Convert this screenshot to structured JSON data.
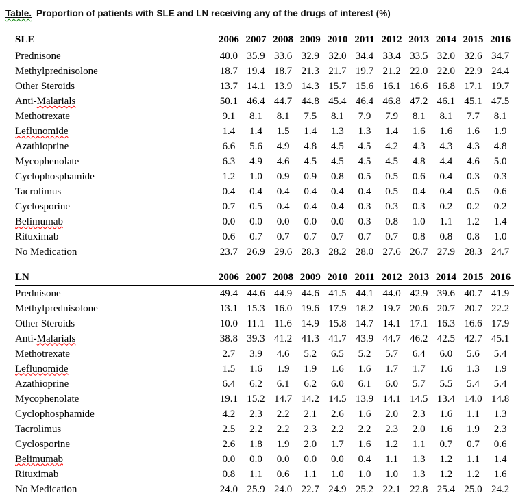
{
  "title": {
    "label": "Table.",
    "text": "Proportion of patients with SLE and LN receiving any of the drugs of interest (%)"
  },
  "colors": {
    "text": "#000000",
    "spellcheck_red": "#ff0000",
    "grammar_green": "#008000",
    "header_rule": "#000000"
  },
  "sections": [
    {
      "header": "SLE",
      "years": [
        "2006",
        "2007",
        "2008",
        "2009",
        "2010",
        "2011",
        "2012",
        "2013",
        "2014",
        "2015",
        "2016"
      ],
      "rows": [
        {
          "label": "Prednisone",
          "values": [
            "40.0",
            "35.9",
            "33.6",
            "32.9",
            "32.0",
            "34.4",
            "33.4",
            "33.5",
            "32.0",
            "32.6",
            "34.7"
          ]
        },
        {
          "label": "Methylprednisolone",
          "values": [
            "18.7",
            "19.4",
            "18.7",
            "21.3",
            "21.7",
            "19.7",
            "21.2",
            "22.0",
            "22.0",
            "22.9",
            "24.4"
          ]
        },
        {
          "label": "Other Steroids",
          "values": [
            "13.7",
            "14.1",
            "13.9",
            "14.3",
            "15.7",
            "15.6",
            "16.1",
            "16.6",
            "16.8",
            "17.1",
            "19.7"
          ]
        },
        {
          "prefix": "Anti-",
          "label": "Malarials",
          "misspelled": true,
          "values": [
            "50.1",
            "46.4",
            "44.7",
            "44.8",
            "45.4",
            "46.4",
            "46.8",
            "47.2",
            "46.1",
            "45.1",
            "47.5"
          ]
        },
        {
          "label": "Methotrexate",
          "values": [
            "9.1",
            "8.1",
            "8.1",
            "7.5",
            "8.1",
            "7.9",
            "7.9",
            "8.1",
            "8.1",
            "7.7",
            "8.1"
          ]
        },
        {
          "label": "Leflunomide",
          "misspelled": true,
          "values": [
            "1.4",
            "1.4",
            "1.5",
            "1.4",
            "1.3",
            "1.3",
            "1.4",
            "1.6",
            "1.6",
            "1.6",
            "1.9"
          ]
        },
        {
          "label": "Azathioprine",
          "values": [
            "6.6",
            "5.6",
            "4.9",
            "4.8",
            "4.5",
            "4.5",
            "4.2",
            "4.3",
            "4.3",
            "4.3",
            "4.8"
          ]
        },
        {
          "label": "Mycophenolate",
          "values": [
            "6.3",
            "4.9",
            "4.6",
            "4.5",
            "4.5",
            "4.5",
            "4.5",
            "4.8",
            "4.4",
            "4.6",
            "5.0"
          ]
        },
        {
          "label": "Cyclophosphamide",
          "values": [
            "1.2",
            "1.0",
            "0.9",
            "0.9",
            "0.8",
            "0.5",
            "0.5",
            "0.6",
            "0.4",
            "0.3",
            "0.3"
          ]
        },
        {
          "label": "Tacrolimus",
          "values": [
            "0.4",
            "0.4",
            "0.4",
            "0.4",
            "0.4",
            "0.4",
            "0.5",
            "0.4",
            "0.4",
            "0.5",
            "0.6"
          ]
        },
        {
          "label": "Cyclosporine",
          "values": [
            "0.7",
            "0.5",
            "0.4",
            "0.4",
            "0.4",
            "0.3",
            "0.3",
            "0.3",
            "0.2",
            "0.2",
            "0.2"
          ]
        },
        {
          "label": "Belimumab",
          "misspelled": true,
          "values": [
            "0.0",
            "0.0",
            "0.0",
            "0.0",
            "0.0",
            "0.3",
            "0.8",
            "1.0",
            "1.1",
            "1.2",
            "1.4"
          ]
        },
        {
          "label": "Rituximab",
          "values": [
            "0.6",
            "0.7",
            "0.7",
            "0.7",
            "0.7",
            "0.7",
            "0.7",
            "0.8",
            "0.8",
            "0.8",
            "1.0"
          ]
        },
        {
          "label": "No Medication",
          "values": [
            "23.7",
            "26.9",
            "29.6",
            "28.3",
            "28.2",
            "28.0",
            "27.6",
            "26.7",
            "27.9",
            "28.3",
            "24.7"
          ]
        }
      ]
    },
    {
      "header": "LN",
      "years": [
        "2006",
        "2007",
        "2008",
        "2009",
        "2010",
        "2011",
        "2012",
        "2013",
        "2014",
        "2015",
        "2016"
      ],
      "rows": [
        {
          "label": "Prednisone",
          "values": [
            "49.4",
            "44.6",
            "44.9",
            "44.6",
            "41.5",
            "44.1",
            "44.0",
            "42.9",
            "39.6",
            "40.7",
            "41.9"
          ]
        },
        {
          "label": "Methylprednisolone",
          "values": [
            "13.1",
            "15.3",
            "16.0",
            "19.6",
            "17.9",
            "18.2",
            "19.7",
            "20.6",
            "20.7",
            "20.7",
            "22.2"
          ]
        },
        {
          "label": "Other Steroids",
          "values": [
            "10.0",
            "11.1",
            "11.6",
            "14.9",
            "15.8",
            "14.7",
            "14.1",
            "17.1",
            "16.3",
            "16.6",
            "17.9"
          ]
        },
        {
          "prefix": "Anti-",
          "label": "Malarials",
          "misspelled": true,
          "values": [
            "38.8",
            "39.3",
            "41.2",
            "41.3",
            "41.7",
            "43.9",
            "44.7",
            "46.2",
            "42.5",
            "42.7",
            "45.1"
          ]
        },
        {
          "label": "Methotrexate",
          "values": [
            "2.7",
            "3.9",
            "4.6",
            "5.2",
            "6.5",
            "5.2",
            "5.7",
            "6.4",
            "6.0",
            "5.6",
            "5.4"
          ]
        },
        {
          "label": "Leflunomide",
          "misspelled": true,
          "values": [
            "1.5",
            "1.6",
            "1.9",
            "1.9",
            "1.6",
            "1.6",
            "1.7",
            "1.7",
            "1.6",
            "1.3",
            "1.9"
          ]
        },
        {
          "label": "Azathioprine",
          "values": [
            "6.4",
            "6.2",
            "6.1",
            "6.2",
            "6.0",
            "6.1",
            "6.0",
            "5.7",
            "5.5",
            "5.4",
            "5.4"
          ]
        },
        {
          "label": "Mycophenolate",
          "values": [
            "19.1",
            "15.2",
            "14.7",
            "14.2",
            "14.5",
            "13.9",
            "14.1",
            "14.5",
            "13.4",
            "14.0",
            "14.8"
          ]
        },
        {
          "label": "Cyclophosphamide",
          "values": [
            "4.2",
            "2.3",
            "2.2",
            "2.1",
            "2.6",
            "1.6",
            "2.0",
            "2.3",
            "1.6",
            "1.1",
            "1.3"
          ]
        },
        {
          "label": "Tacrolimus",
          "values": [
            "2.5",
            "2.2",
            "2.2",
            "2.3",
            "2.2",
            "2.2",
            "2.3",
            "2.0",
            "1.6",
            "1.9",
            "2.3"
          ]
        },
        {
          "label": "Cyclosporine",
          "values": [
            "2.6",
            "1.8",
            "1.9",
            "2.0",
            "1.7",
            "1.6",
            "1.2",
            "1.1",
            "0.7",
            "0.7",
            "0.6"
          ]
        },
        {
          "label": "Belimumab",
          "misspelled": true,
          "values": [
            "0.0",
            "0.0",
            "0.0",
            "0.0",
            "0.0",
            "0.4",
            "1.1",
            "1.3",
            "1.2",
            "1.1",
            "1.4"
          ]
        },
        {
          "label": "Rituximab",
          "values": [
            "0.8",
            "1.1",
            "0.6",
            "1.1",
            "1.0",
            "1.0",
            "1.0",
            "1.3",
            "1.2",
            "1.2",
            "1.6"
          ]
        },
        {
          "label": "No Medication",
          "values": [
            "24.0",
            "25.9",
            "24.0",
            "22.7",
            "24.9",
            "25.2",
            "22.1",
            "22.8",
            "25.4",
            "25.0",
            "24.2"
          ]
        }
      ]
    }
  ]
}
